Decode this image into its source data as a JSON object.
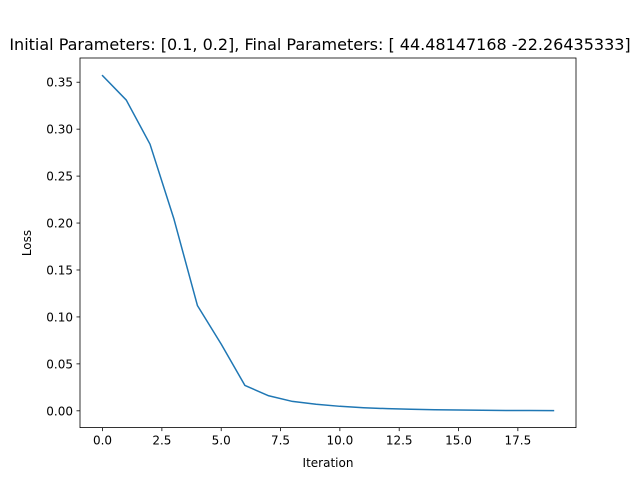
{
  "chart_data": {
    "type": "line",
    "title": "Initial Parameters: [0.1, 0.2], Final Parameters: [ 44.48147168 -22.26435333]",
    "xlabel": "Iteration",
    "ylabel": "Loss",
    "xlim": [
      -0.95,
      19.95
    ],
    "ylim": [
      -0.01788,
      0.3758
    ],
    "xticks": [
      0,
      2.5,
      5,
      7.5,
      10,
      12.5,
      15,
      17.5
    ],
    "xtick_labels": [
      "0.0",
      "2.5",
      "5.0",
      "7.5",
      "10.0",
      "12.5",
      "15.0",
      "17.5"
    ],
    "yticks": [
      0,
      0.05,
      0.1,
      0.15,
      0.2,
      0.25,
      0.3,
      0.35
    ],
    "ytick_labels": [
      "0.00",
      "0.05",
      "0.10",
      "0.15",
      "0.20",
      "0.25",
      "0.30",
      "0.35"
    ],
    "grid": false,
    "series": [
      {
        "name": "Loss",
        "color": "#1f77b4",
        "x": [
          0,
          1,
          2,
          3,
          4,
          5,
          6,
          7,
          8,
          9,
          10,
          11,
          12,
          13,
          14,
          15,
          16,
          17,
          18,
          19
        ],
        "values": [
          0.357,
          0.331,
          0.284,
          0.205,
          0.112,
          0.071,
          0.027,
          0.016,
          0.01,
          0.007,
          0.0048,
          0.0033,
          0.0023,
          0.0016,
          0.0011,
          0.0008,
          0.0006,
          0.0004,
          0.0003,
          0.0002
        ]
      }
    ]
  }
}
